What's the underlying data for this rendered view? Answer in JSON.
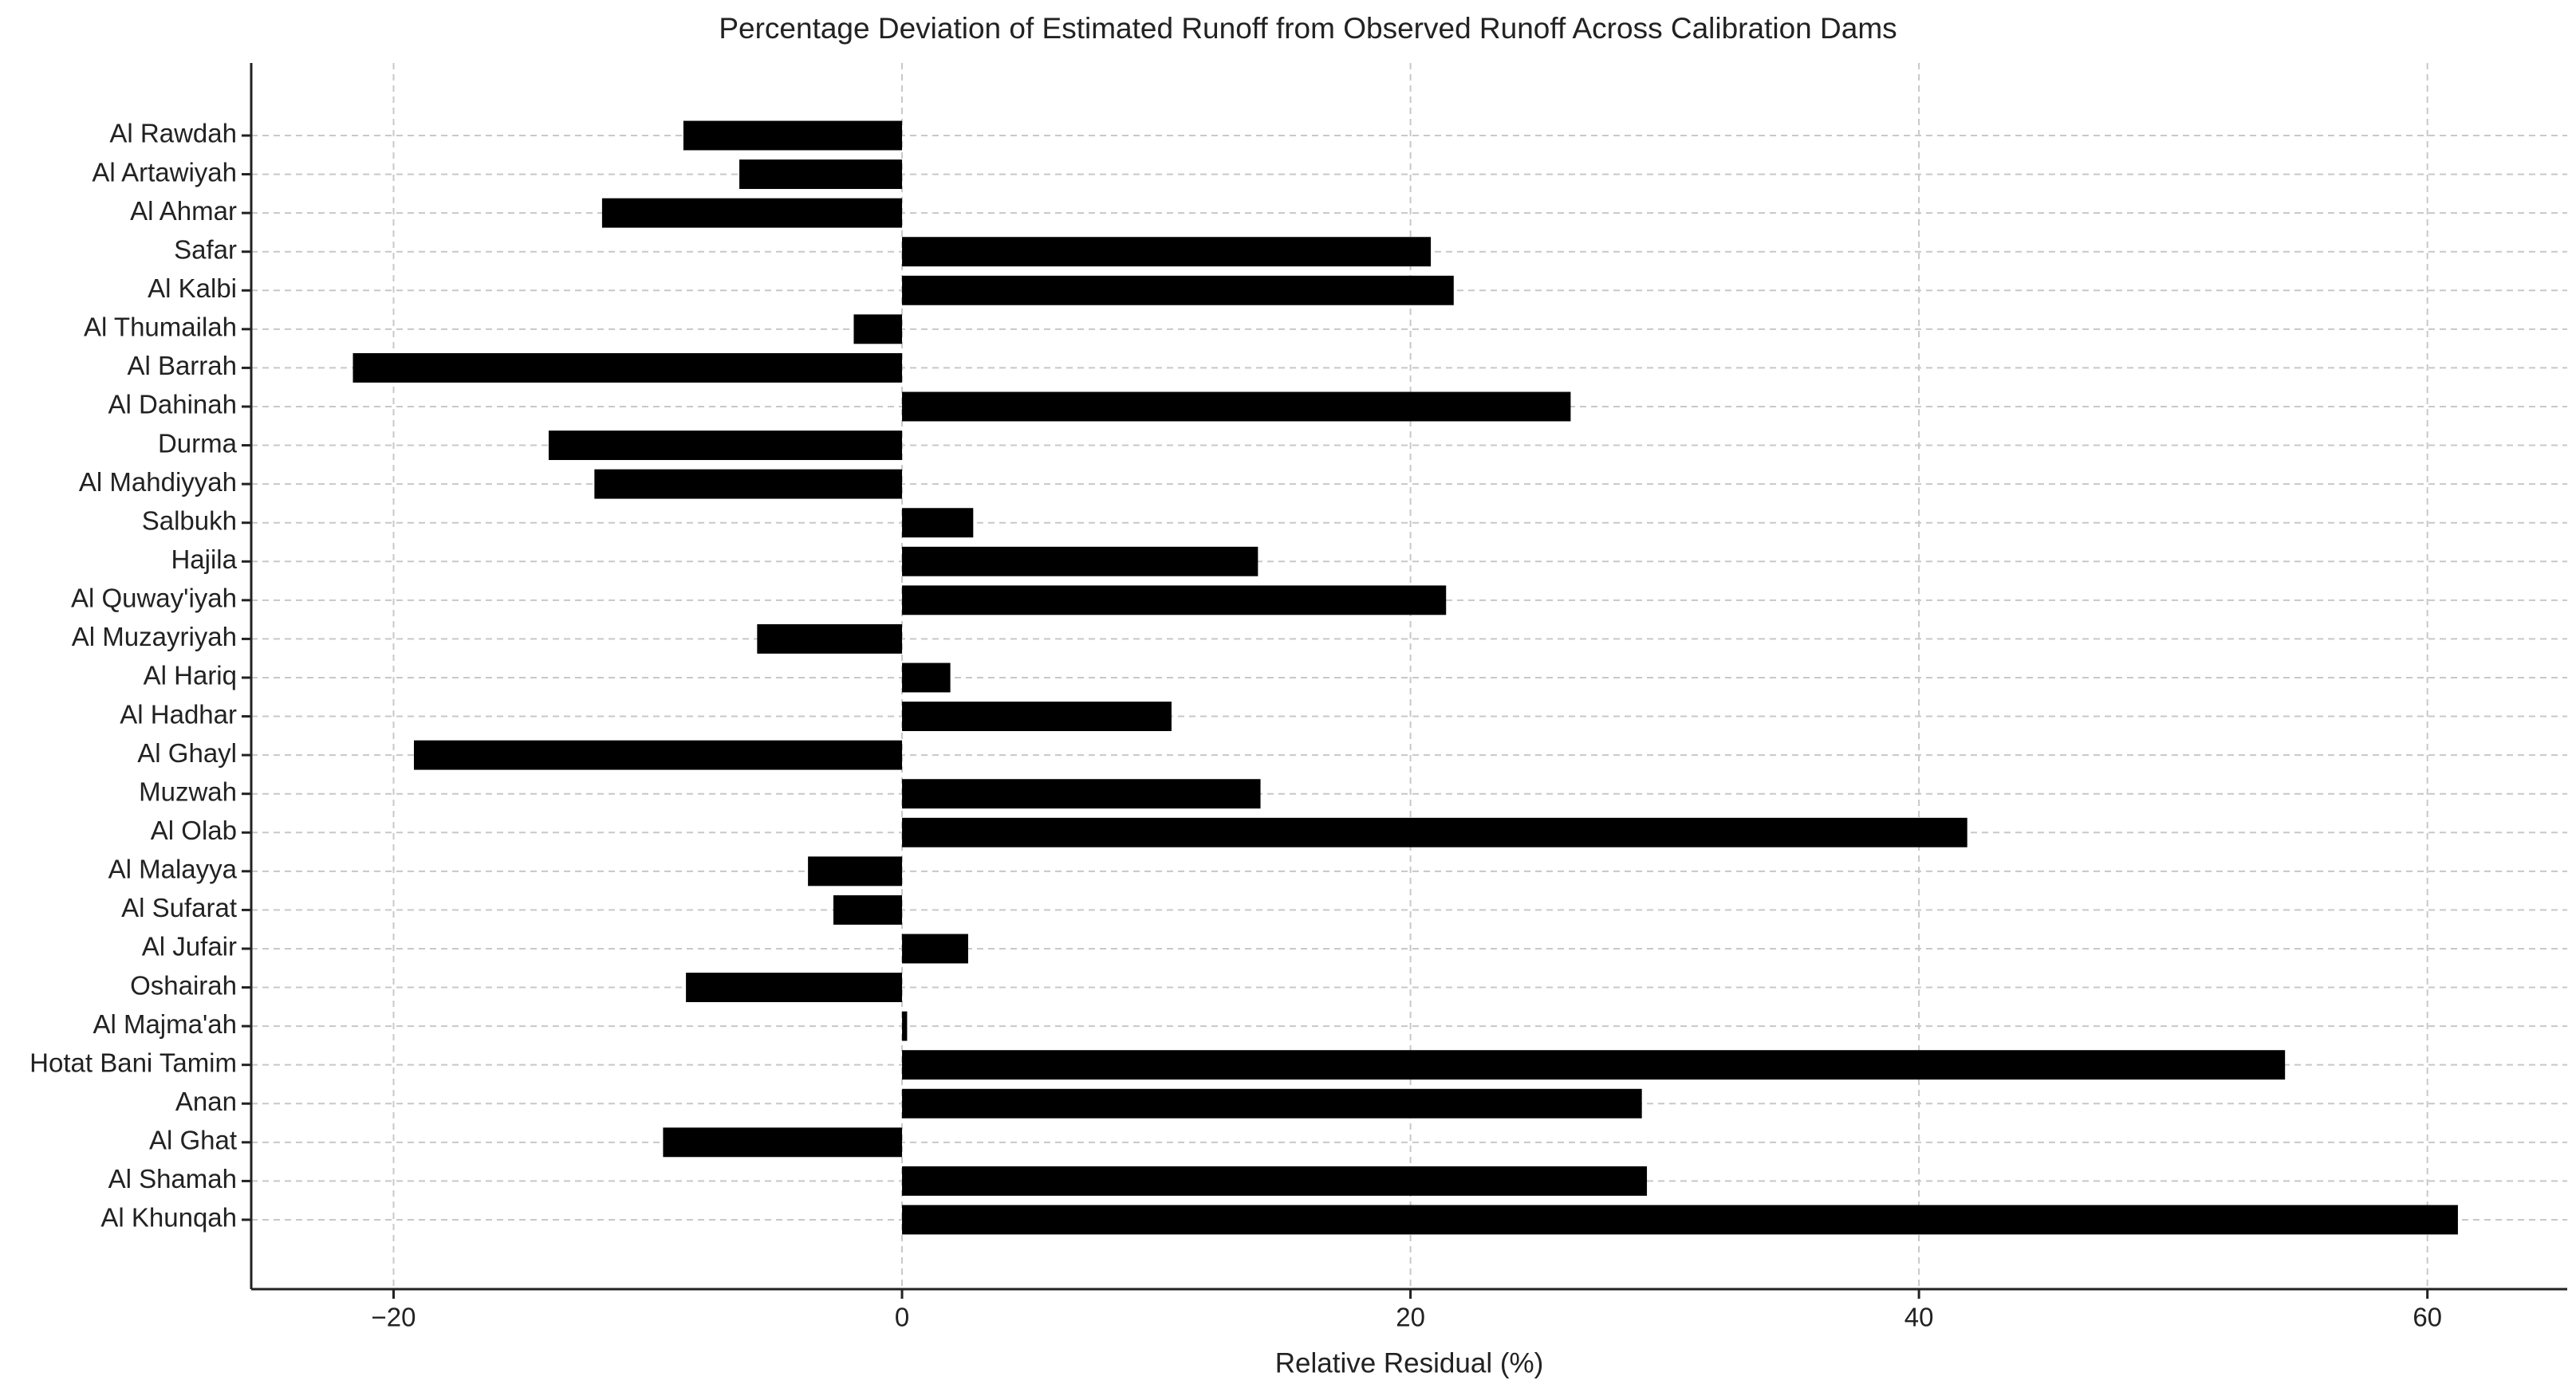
{
  "chart_data": {
    "type": "barh",
    "title": "Percentage Deviation of Estimated Runoff from Observed Runoff Across Calibration Dams",
    "x_label": "Relative Residual (%)",
    "categories": [
      "Al Rawdah",
      "Al Artawiyah",
      "Al Ahmar",
      "Safar",
      "Al Kalbi",
      "Al Thumailah",
      "Al Barrah",
      "Al Dahinah",
      "Durma",
      "Al Mahdiyyah",
      "Salbukh",
      "Hajila",
      "Al Quway'iyah",
      "Al Muzayriyah",
      "Al Hariq",
      "Al Hadhar",
      "Al Ghayl",
      "Muzwah",
      "Al Olab",
      "Al Malayya",
      "Al Sufarat",
      "Al Jufair",
      "Oshairah",
      "Al Majma'ah",
      "Hotat Bani Tamim",
      "Anan",
      "Al Ghat",
      "Al Shamah",
      "Al Khunqah"
    ],
    "values": [
      -8.6,
      -6.4,
      -11.8,
      20.8,
      21.7,
      -1.9,
      -21.6,
      26.3,
      -13.9,
      -12.1,
      2.8,
      14.0,
      21.4,
      -5.7,
      1.9,
      10.6,
      -19.2,
      14.1,
      41.9,
      -3.7,
      -2.7,
      2.6,
      -8.5,
      0.2,
      54.4,
      29.1,
      -9.4,
      29.3,
      61.2
    ],
    "color": "#000000",
    "xlim": [
      -25.6,
      65.5
    ],
    "xticks": [
      {
        "value": -20,
        "label": "−20"
      },
      0,
      20,
      40,
      60
    ],
    "grid": true
  }
}
